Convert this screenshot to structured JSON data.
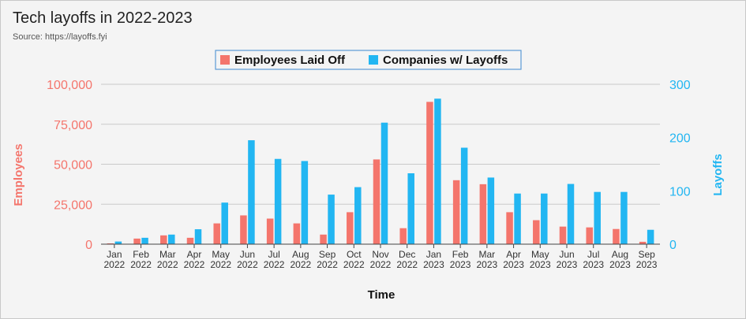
{
  "header": {
    "title": "Tech layoffs in 2022-2023",
    "subtitle": "Source: https://layoffs.fyi"
  },
  "chart_data": {
    "type": "bar",
    "categories": [
      "Jan 2022",
      "Feb 2022",
      "Mar 2022",
      "Apr 2022",
      "May 2022",
      "Jun 2022",
      "Jul 2022",
      "Aug 2022",
      "Sep 2022",
      "Oct 2022",
      "Nov 2022",
      "Dec 2022",
      "Jan 2023",
      "Feb 2023",
      "Mar 2023",
      "Apr 2023",
      "May 2023",
      "Jun 2023",
      "Jul 2023",
      "Aug 2023",
      "Sep 2023"
    ],
    "series": [
      {
        "name": "Employees Laid Off",
        "axis": "left",
        "color": "#f4756c",
        "values": [
          500,
          3500,
          5500,
          4000,
          13000,
          18000,
          16000,
          13000,
          6000,
          20000,
          53000,
          10000,
          89000,
          40000,
          37500,
          20000,
          15000,
          11000,
          10500,
          9500,
          1500
        ]
      },
      {
        "name": "Companies w/ Layoffs",
        "axis": "right",
        "color": "#22b6f2",
        "values": [
          5,
          12,
          18,
          28,
          78,
          195,
          160,
          156,
          93,
          107,
          228,
          133,
          273,
          181,
          125,
          95,
          95,
          113,
          98,
          98,
          27
        ]
      }
    ],
    "xlabel": "Time",
    "ylabel_left": "Employees",
    "ylabel_right": "Layoffs",
    "ylim_left": [
      0,
      100000
    ],
    "ylim_right": [
      0,
      300
    ],
    "yticks_left": [
      "0",
      "25,000",
      "50,000",
      "75,000",
      "100,000"
    ],
    "yticks_right": [
      "0",
      "100",
      "200",
      "300"
    ],
    "grid": true,
    "legend_position": "top-center"
  }
}
